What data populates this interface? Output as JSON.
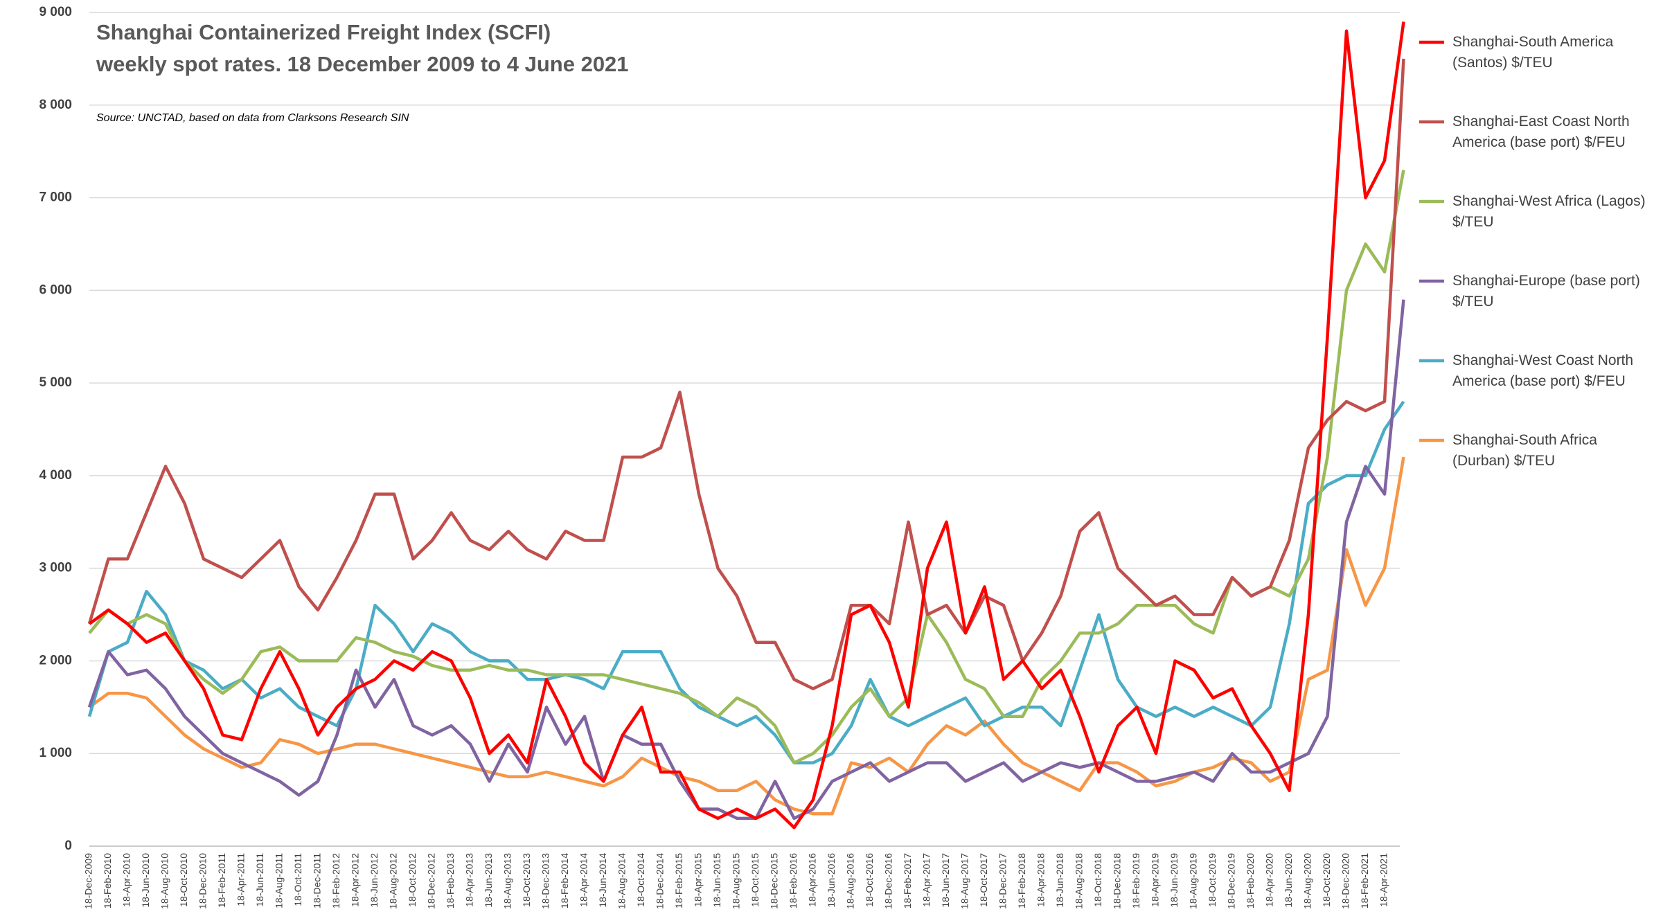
{
  "chart_data": {
    "type": "line",
    "title": "Shanghai Containerized Freight Index (SCFI)",
    "subtitle": "weekly spot rates. 18 December 2009 to 4 June 2021",
    "source": "Source: UNCTAD, based on data from Clarksons Research SIN",
    "categories": [
      "18-Dec-2009",
      "18-Feb-2010",
      "18-Apr-2010",
      "18-Jun-2010",
      "18-Aug-2010",
      "18-Oct-2010",
      "18-Dec-2010",
      "18-Feb-2011",
      "18-Apr-2011",
      "18-Jun-2011",
      "18-Aug-2011",
      "18-Oct-2011",
      "18-Dec-2011",
      "18-Feb-2012",
      "18-Apr-2012",
      "18-Jun-2012",
      "18-Aug-2012",
      "18-Oct-2012",
      "18-Dec-2012",
      "18-Feb-2013",
      "18-Apr-2013",
      "18-Jun-2013",
      "18-Aug-2013",
      "18-Oct-2013",
      "18-Dec-2013",
      "18-Feb-2014",
      "18-Apr-2014",
      "18-Jun-2014",
      "18-Aug-2014",
      "18-Oct-2014",
      "18-Dec-2014",
      "18-Feb-2015",
      "18-Apr-2015",
      "18-Jun-2015",
      "18-Aug-2015",
      "18-Oct-2015",
      "18-Dec-2015",
      "18-Feb-2016",
      "18-Apr-2016",
      "18-Jun-2016",
      "18-Aug-2016",
      "18-Oct-2016",
      "18-Dec-2016",
      "18-Feb-2017",
      "18-Apr-2017",
      "18-Jun-2017",
      "18-Aug-2017",
      "18-Oct-2017",
      "18-Dec-2017",
      "18-Feb-2018",
      "18-Apr-2018",
      "18-Jun-2018",
      "18-Aug-2018",
      "18-Oct-2018",
      "18-Dec-2018",
      "18-Feb-2019",
      "18-Apr-2019",
      "18-Jun-2019",
      "18-Aug-2019",
      "18-Oct-2019",
      "18-Dec-2019",
      "18-Feb-2020",
      "18-Apr-2020",
      "18-Jun-2020",
      "18-Aug-2020",
      "18-Oct-2020",
      "18-Dec-2020",
      "18-Feb-2021",
      "18-Apr-2021",
      null
    ],
    "series": [
      {
        "name": "Shanghai-South America (Santos) $/TEU",
        "color": "#ff0000",
        "values": [
          2400,
          2550,
          2400,
          2200,
          2300,
          2000,
          1700,
          1200,
          1150,
          1700,
          2100,
          1700,
          1200,
          1500,
          1700,
          1800,
          2000,
          1900,
          2100,
          2000,
          1600,
          1000,
          1200,
          900,
          1800,
          1400,
          900,
          700,
          1200,
          1500,
          800,
          800,
          400,
          300,
          400,
          300,
          400,
          200,
          500,
          1300,
          2500,
          2600,
          2200,
          1500,
          3000,
          3500,
          2300,
          2800,
          1800,
          2000,
          1700,
          1900,
          1400,
          800,
          1300,
          1500,
          1000,
          2000,
          1900,
          1600,
          1700,
          1300,
          1000,
          600,
          2500,
          5500,
          8800,
          7000,
          7400,
          8900
        ]
      },
      {
        "name": "Shanghai-East Coast North America (base port) $/FEU",
        "color": "#c0504d",
        "values": [
          2400,
          3100,
          3100,
          3600,
          4100,
          3700,
          3100,
          3000,
          2900,
          3100,
          3300,
          2800,
          2550,
          2900,
          3300,
          3800,
          3800,
          3100,
          3300,
          3600,
          3300,
          3200,
          3400,
          3200,
          3100,
          3400,
          3300,
          3300,
          4200,
          4200,
          4300,
          4900,
          3800,
          3000,
          2700,
          2200,
          2200,
          1800,
          1700,
          1800,
          2600,
          2600,
          2400,
          3500,
          2500,
          2600,
          2300,
          2700,
          2600,
          2000,
          2300,
          2700,
          3400,
          3600,
          3000,
          2800,
          2600,
          2700,
          2500,
          2500,
          2900,
          2700,
          2800,
          3300,
          4300,
          4600,
          4800,
          4700,
          4800,
          8500
        ]
      },
      {
        "name": "Shanghai-West Africa (Lagos) $/TEU",
        "color": "#9bbb59",
        "values": [
          2300,
          2550,
          2400,
          2500,
          2400,
          2000,
          1800,
          1650,
          1800,
          2100,
          2150,
          2000,
          2000,
          2000,
          2250,
          2200,
          2100,
          2050,
          1950,
          1900,
          1900,
          1950,
          1900,
          1900,
          1850,
          1850,
          1850,
          1850,
          1800,
          1750,
          1700,
          1650,
          1550,
          1400,
          1600,
          1500,
          1300,
          900,
          1000,
          1200,
          1500,
          1700,
          1400,
          1600,
          2500,
          2200,
          1800,
          1700,
          1400,
          1400,
          1800,
          2000,
          2300,
          2300,
          2400,
          2600,
          2600,
          2600,
          2400,
          2300,
          2900,
          2700,
          2800,
          2700,
          3100,
          4200,
          6000,
          6500,
          6200,
          7300
        ]
      },
      {
        "name": "Shanghai-Europe (base port) $/TEU",
        "color": "#8064a2",
        "values": [
          1500,
          2100,
          1850,
          1900,
          1700,
          1400,
          1200,
          1000,
          900,
          800,
          700,
          550,
          700,
          1200,
          1900,
          1500,
          1800,
          1300,
          1200,
          1300,
          1100,
          700,
          1100,
          800,
          1500,
          1100,
          1400,
          700,
          1200,
          1100,
          1100,
          700,
          400,
          400,
          300,
          300,
          700,
          300,
          400,
          700,
          800,
          900,
          700,
          800,
          900,
          900,
          700,
          800,
          900,
          700,
          800,
          900,
          850,
          900,
          800,
          700,
          700,
          750,
          800,
          700,
          1000,
          800,
          800,
          900,
          1000,
          1400,
          3500,
          4100,
          3800,
          5900
        ]
      },
      {
        "name": "Shanghai-West Coast  North America (base port) $/FEU",
        "color": "#4bacc6",
        "values": [
          1400,
          2100,
          2200,
          2750,
          2500,
          2000,
          1900,
          1700,
          1800,
          1600,
          1700,
          1500,
          1400,
          1300,
          1700,
          2600,
          2400,
          2100,
          2400,
          2300,
          2100,
          2000,
          2000,
          1800,
          1800,
          1850,
          1800,
          1700,
          2100,
          2100,
          2100,
          1700,
          1500,
          1400,
          1300,
          1400,
          1200,
          900,
          900,
          1000,
          1300,
          1800,
          1400,
          1300,
          1400,
          1500,
          1600,
          1300,
          1400,
          1500,
          1500,
          1300,
          1900,
          2500,
          1800,
          1500,
          1400,
          1500,
          1400,
          1500,
          1400,
          1300,
          1500,
          2400,
          3700,
          3900,
          4000,
          4000,
          4500,
          4800
        ]
      },
      {
        "name": "Shanghai-South Africa (Durban) $/TEU",
        "color": "#f79646",
        "values": [
          1500,
          1650,
          1650,
          1600,
          1400,
          1200,
          1050,
          950,
          850,
          900,
          1150,
          1100,
          1000,
          1050,
          1100,
          1100,
          1050,
          1000,
          950,
          900,
          850,
          800,
          750,
          750,
          800,
          750,
          700,
          650,
          750,
          950,
          850,
          750,
          700,
          600,
          600,
          700,
          500,
          400,
          350,
          350,
          900,
          850,
          950,
          800,
          1100,
          1300,
          1200,
          1350,
          1100,
          900,
          800,
          700,
          600,
          900,
          900,
          800,
          650,
          700,
          800,
          850,
          950,
          900,
          700,
          800,
          1800,
          1900,
          3200,
          2600,
          3000,
          4200
        ]
      }
    ],
    "ylim": [
      0,
      9000
    ],
    "yticks": [
      0,
      {
        "value": 1000,
        "label": "1 000"
      },
      {
        "value": 2000,
        "label": "2 000"
      },
      {
        "value": 3000,
        "label": "3 000"
      },
      {
        "value": 4000,
        "label": "4 000"
      },
      {
        "value": 5000,
        "label": "5 000"
      },
      {
        "value": 6000,
        "label": "6 000"
      },
      {
        "value": 7000,
        "label": "7 000"
      },
      {
        "value": 8000,
        "label": "8 000"
      },
      {
        "value": 9000,
        "label": "9 000"
      }
    ],
    "grid": true
  }
}
